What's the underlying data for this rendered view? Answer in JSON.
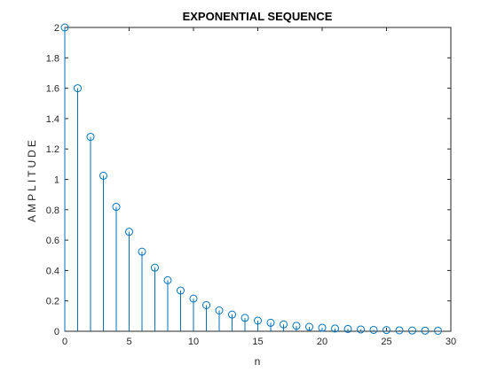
{
  "chart_data": {
    "type": "stem",
    "title": "EXPONENTIAL SEQUENCE",
    "xlabel": "n",
    "ylabel": "AMPLITUDE",
    "xlim": [
      0,
      30
    ],
    "ylim": [
      0,
      2
    ],
    "xticks": [
      0,
      5,
      10,
      15,
      20,
      25,
      30
    ],
    "yticks": [
      0,
      0.2,
      0.4,
      0.6,
      0.8,
      1,
      1.2,
      1.4,
      1.6,
      1.8,
      2
    ],
    "grid": false,
    "marker": "circle",
    "color": "#0072BD",
    "x": [
      0,
      1,
      2,
      3,
      4,
      5,
      6,
      7,
      8,
      9,
      10,
      11,
      12,
      13,
      14,
      15,
      16,
      17,
      18,
      19,
      20,
      21,
      22,
      23,
      24,
      25,
      26,
      27,
      28,
      29
    ],
    "values": [
      2.0,
      1.6,
      1.28,
      1.024,
      0.819,
      0.655,
      0.524,
      0.419,
      0.336,
      0.268,
      0.215,
      0.172,
      0.137,
      0.11,
      0.088,
      0.07,
      0.056,
      0.045,
      0.036,
      0.029,
      0.023,
      0.018,
      0.015,
      0.012,
      0.009,
      0.008,
      0.006,
      0.005,
      0.004,
      0.003
    ]
  }
}
